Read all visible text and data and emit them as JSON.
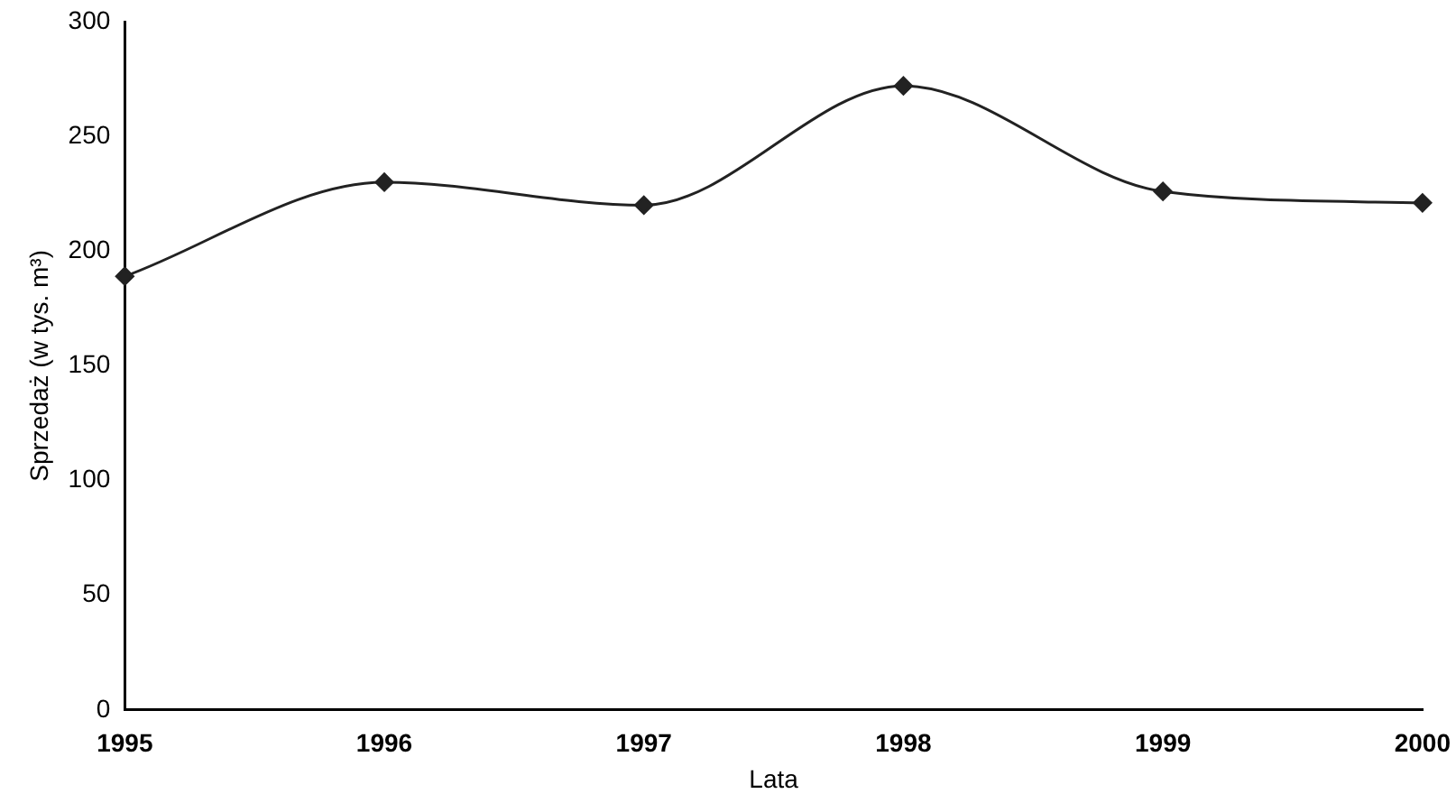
{
  "chart_data": {
    "type": "line",
    "xlabel": "Lata",
    "ylabel": "Sprzedaż (w tys. m³)",
    "categories": [
      "1995",
      "1996",
      "1997",
      "1998",
      "1999",
      "2000"
    ],
    "series": [
      {
        "color": "#222222",
        "values": [
          189,
          230,
          220,
          272,
          226,
          221
        ]
      }
    ],
    "ylim": [
      0,
      300
    ],
    "yticks": [
      0,
      50,
      100,
      150,
      200,
      250,
      300
    ],
    "grid": false,
    "legend": false,
    "marker": "diamond",
    "line_style": "solid"
  }
}
